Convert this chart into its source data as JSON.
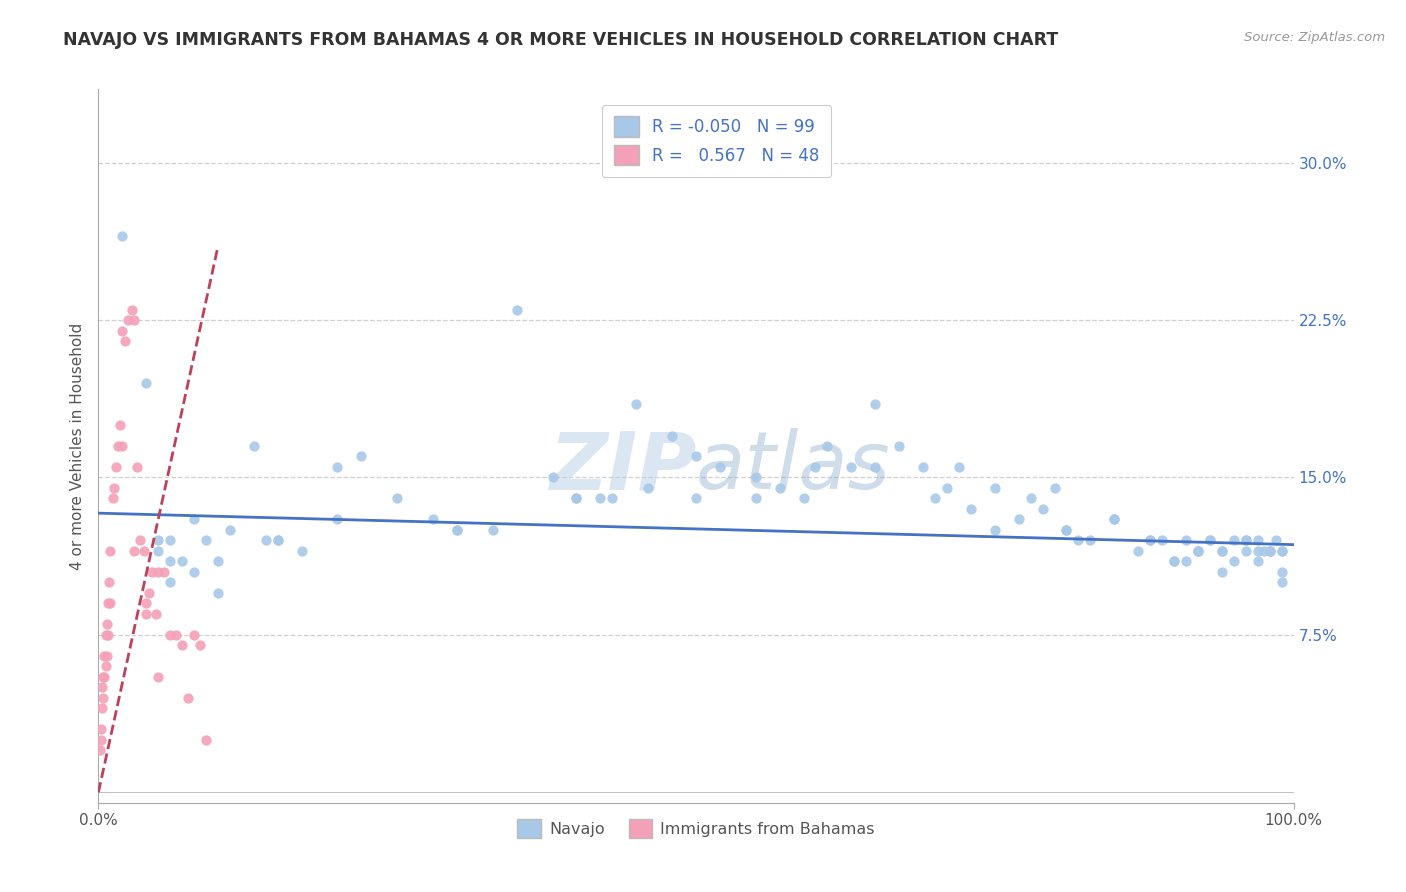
{
  "title": "NAVAJO VS IMMIGRANTS FROM BAHAMAS 4 OR MORE VEHICLES IN HOUSEHOLD CORRELATION CHART",
  "source_text": "Source: ZipAtlas.com",
  "ylabel": "4 or more Vehicles in Household",
  "xlim": [
    0.0,
    1.0
  ],
  "ylim": [
    -0.005,
    0.335
  ],
  "xtick_positions": [
    0.0,
    1.0
  ],
  "xticklabels": [
    "0.0%",
    "100.0%"
  ],
  "ytick_positions": [
    0.0,
    0.075,
    0.15,
    0.225,
    0.3
  ],
  "yticklabels": [
    "",
    "7.5%",
    "15.0%",
    "22.5%",
    "30.0%"
  ],
  "navajo_R": "-0.050",
  "navajo_N": "99",
  "bahamas_R": "0.567",
  "bahamas_N": "48",
  "navajo_color": "#a8c8e8",
  "bahamas_color": "#f4a0b8",
  "navajo_line_color": "#4472c4",
  "bahamas_line_color": "#c0405a",
  "background_color": "#ffffff",
  "grid_color": "#d0d0d0",
  "watermark": "ZIPatlas",
  "navajo_x": [
    0.02,
    0.04,
    0.05,
    0.05,
    0.06,
    0.06,
    0.07,
    0.08,
    0.09,
    0.1,
    0.11,
    0.13,
    0.14,
    0.15,
    0.17,
    0.2,
    0.22,
    0.25,
    0.28,
    0.3,
    0.33,
    0.35,
    0.38,
    0.4,
    0.42,
    0.45,
    0.48,
    0.5,
    0.52,
    0.55,
    0.57,
    0.59,
    0.61,
    0.63,
    0.65,
    0.67,
    0.69,
    0.71,
    0.73,
    0.75,
    0.77,
    0.79,
    0.81,
    0.83,
    0.85,
    0.87,
    0.88,
    0.89,
    0.9,
    0.91,
    0.92,
    0.93,
    0.94,
    0.95,
    0.96,
    0.97,
    0.975,
    0.98,
    0.985,
    0.99,
    0.91,
    0.92,
    0.93,
    0.94,
    0.95,
    0.96,
    0.97,
    0.98,
    0.99,
    0.99,
    0.81,
    0.85,
    0.88,
    0.9,
    0.92,
    0.94,
    0.96,
    0.97,
    0.98,
    0.99,
    0.6,
    0.65,
    0.7,
    0.72,
    0.75,
    0.78,
    0.8,
    0.82,
    0.5,
    0.55,
    0.4,
    0.43,
    0.46,
    0.3,
    0.2,
    0.15,
    0.1,
    0.08,
    0.06
  ],
  "navajo_y": [
    0.265,
    0.195,
    0.12,
    0.115,
    0.12,
    0.11,
    0.11,
    0.13,
    0.12,
    0.11,
    0.125,
    0.165,
    0.12,
    0.12,
    0.115,
    0.155,
    0.16,
    0.14,
    0.13,
    0.125,
    0.125,
    0.23,
    0.15,
    0.14,
    0.14,
    0.185,
    0.17,
    0.16,
    0.155,
    0.15,
    0.145,
    0.14,
    0.165,
    0.155,
    0.185,
    0.165,
    0.155,
    0.145,
    0.135,
    0.125,
    0.13,
    0.135,
    0.125,
    0.12,
    0.13,
    0.115,
    0.12,
    0.12,
    0.11,
    0.12,
    0.115,
    0.12,
    0.115,
    0.12,
    0.115,
    0.12,
    0.115,
    0.115,
    0.12,
    0.115,
    0.11,
    0.115,
    0.12,
    0.105,
    0.11,
    0.12,
    0.11,
    0.115,
    0.1,
    0.115,
    0.125,
    0.13,
    0.12,
    0.11,
    0.115,
    0.115,
    0.12,
    0.115,
    0.115,
    0.105,
    0.155,
    0.155,
    0.14,
    0.155,
    0.145,
    0.14,
    0.145,
    0.12,
    0.14,
    0.14,
    0.14,
    0.14,
    0.145,
    0.125,
    0.13,
    0.12,
    0.095,
    0.105,
    0.1
  ],
  "bahamas_x": [
    0.001,
    0.002,
    0.002,
    0.003,
    0.003,
    0.004,
    0.004,
    0.005,
    0.005,
    0.006,
    0.006,
    0.007,
    0.007,
    0.008,
    0.008,
    0.009,
    0.01,
    0.01,
    0.012,
    0.013,
    0.015,
    0.016,
    0.018,
    0.02,
    0.022,
    0.025,
    0.028,
    0.03,
    0.032,
    0.035,
    0.038,
    0.04,
    0.042,
    0.045,
    0.048,
    0.05,
    0.055,
    0.06,
    0.065,
    0.07,
    0.075,
    0.08,
    0.085,
    0.09,
    0.05,
    0.04,
    0.03,
    0.02
  ],
  "bahamas_y": [
    0.02,
    0.03,
    0.025,
    0.05,
    0.04,
    0.055,
    0.045,
    0.065,
    0.055,
    0.075,
    0.06,
    0.08,
    0.065,
    0.09,
    0.075,
    0.1,
    0.115,
    0.09,
    0.14,
    0.145,
    0.155,
    0.165,
    0.175,
    0.22,
    0.215,
    0.225,
    0.23,
    0.225,
    0.155,
    0.12,
    0.115,
    0.09,
    0.095,
    0.105,
    0.085,
    0.055,
    0.105,
    0.075,
    0.075,
    0.07,
    0.045,
    0.075,
    0.07,
    0.025,
    0.105,
    0.085,
    0.115,
    0.165
  ]
}
